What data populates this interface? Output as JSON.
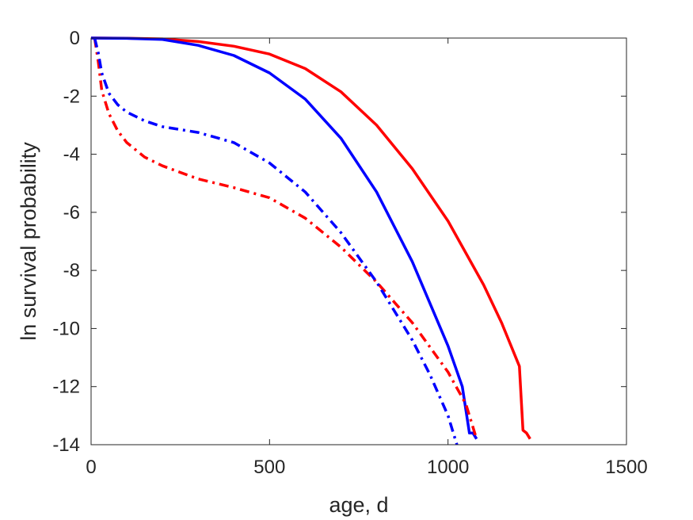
{
  "chart_data": {
    "type": "line",
    "xlabel": "age, d",
    "ylabel": "ln survival probability",
    "xlim": [
      0,
      1500
    ],
    "ylim": [
      -14,
      0
    ],
    "xticks": [
      0,
      500,
      1000,
      1500
    ],
    "yticks": [
      0,
      -2,
      -4,
      -6,
      -8,
      -10,
      -12,
      -14
    ],
    "grid": false,
    "colors": {
      "red": "#ff0000",
      "blue": "#0000ff",
      "axis": "#262626"
    },
    "series": [
      {
        "color": "#ff0000",
        "style": "solid",
        "x": [
          0,
          100,
          200,
          300,
          400,
          500,
          600,
          700,
          800,
          900,
          1000,
          1100,
          1150,
          1200,
          1210,
          1220,
          1230
        ],
        "y": [
          0,
          -0.005,
          -0.03,
          -0.12,
          -0.28,
          -0.55,
          -1.05,
          -1.85,
          -3.0,
          -4.5,
          -6.3,
          -8.5,
          -9.8,
          -11.3,
          -13.5,
          -13.6,
          -13.8
        ]
      },
      {
        "color": "#0000ff",
        "style": "solid",
        "x": [
          0,
          100,
          200,
          300,
          400,
          500,
          600,
          700,
          800,
          900,
          1000,
          1040,
          1060,
          1070,
          1080
        ],
        "y": [
          0,
          -0.01,
          -0.05,
          -0.25,
          -0.6,
          -1.2,
          -2.1,
          -3.45,
          -5.3,
          -7.7,
          -10.6,
          -12.0,
          -13.6,
          -13.6,
          -13.8
        ]
      },
      {
        "color": "#ff0000",
        "style": "dashdot",
        "x": [
          10,
          20,
          30,
          50,
          75,
          100,
          150,
          200,
          300,
          400,
          500,
          600,
          700,
          800,
          900,
          1000,
          1050,
          1070,
          1080
        ],
        "y": [
          0,
          -0.8,
          -1.8,
          -2.6,
          -3.2,
          -3.6,
          -4.1,
          -4.4,
          -4.85,
          -5.15,
          -5.5,
          -6.2,
          -7.2,
          -8.4,
          -9.8,
          -11.5,
          -12.6,
          -13.4,
          -13.8
        ]
      },
      {
        "color": "#0000ff",
        "style": "dashdot",
        "x": [
          10,
          20,
          30,
          50,
          75,
          100,
          150,
          200,
          300,
          400,
          500,
          600,
          700,
          800,
          900,
          950,
          1000,
          1025
        ],
        "y": [
          0,
          -0.5,
          -1.2,
          -1.9,
          -2.3,
          -2.55,
          -2.85,
          -3.05,
          -3.25,
          -3.6,
          -4.3,
          -5.3,
          -6.7,
          -8.4,
          -10.4,
          -11.6,
          -13.0,
          -14.0
        ]
      }
    ]
  }
}
